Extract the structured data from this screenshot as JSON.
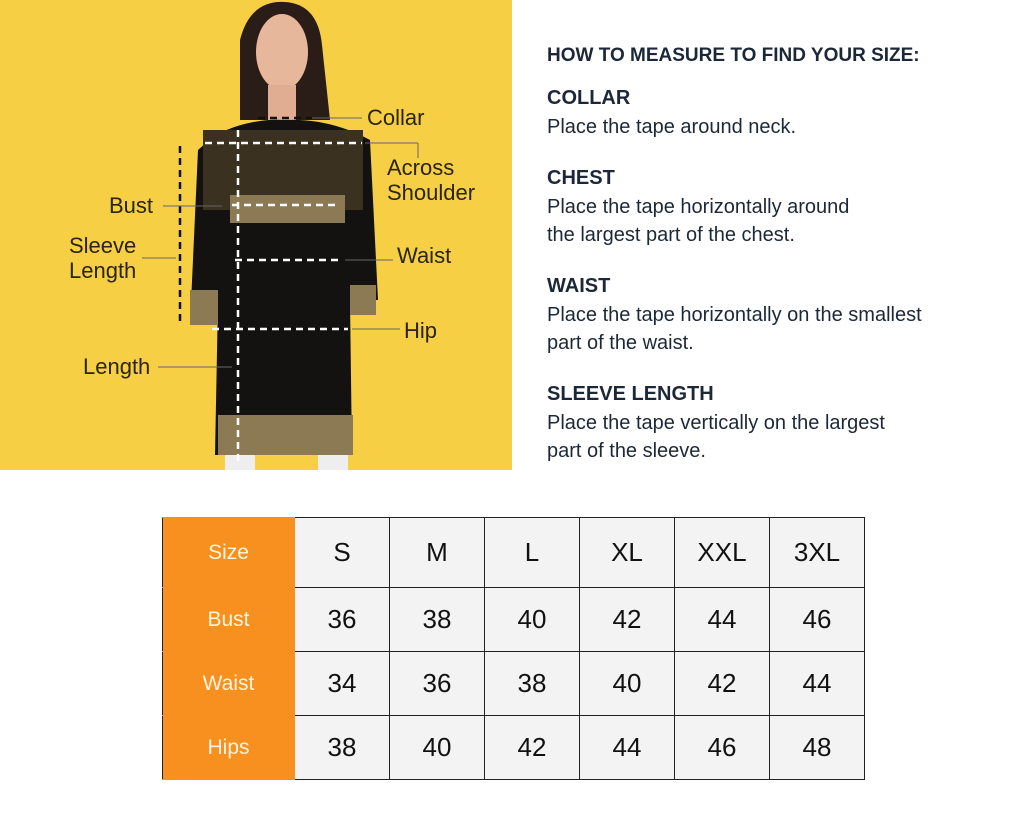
{
  "illustration": {
    "labels": {
      "collar": "Collar",
      "across_shoulder_1": "Across",
      "across_shoulder_2": "Shoulder",
      "bust": "Bust",
      "sleeve_1": "Sleeve",
      "sleeve_2": "Length",
      "waist": "Waist",
      "hip": "Hip",
      "length": "Length"
    },
    "colors": {
      "background": "#f6cf45",
      "garment": "#141210",
      "pattern": "#b9a57a"
    }
  },
  "guide": {
    "title": "HOW TO MEASURE TO FIND YOUR SIZE:",
    "sections": [
      {
        "heading": "COLLAR",
        "lines": [
          "Place the tape around neck."
        ]
      },
      {
        "heading": "CHEST",
        "lines": [
          "Place the tape horizontally around",
          "the largest part of the chest."
        ]
      },
      {
        "heading": "WAIST",
        "lines": [
          "Place the tape horizontally on the smallest",
          "part of the waist."
        ]
      },
      {
        "heading": "SLEEVE LENGTH",
        "lines": [
          "Place the tape vertically on the largest",
          "part of the sleeve."
        ]
      }
    ]
  },
  "size_table": {
    "accent": "#f7901e",
    "header": [
      "Size",
      "S",
      "M",
      "L",
      "XL",
      "XXL",
      "3XL"
    ],
    "rows": [
      [
        "Bust",
        "36",
        "38",
        "40",
        "42",
        "44",
        "46"
      ],
      [
        "Waist",
        "34",
        "36",
        "38",
        "40",
        "42",
        "44"
      ],
      [
        "Hips",
        "38",
        "40",
        "42",
        "44",
        "46",
        "48"
      ]
    ]
  }
}
